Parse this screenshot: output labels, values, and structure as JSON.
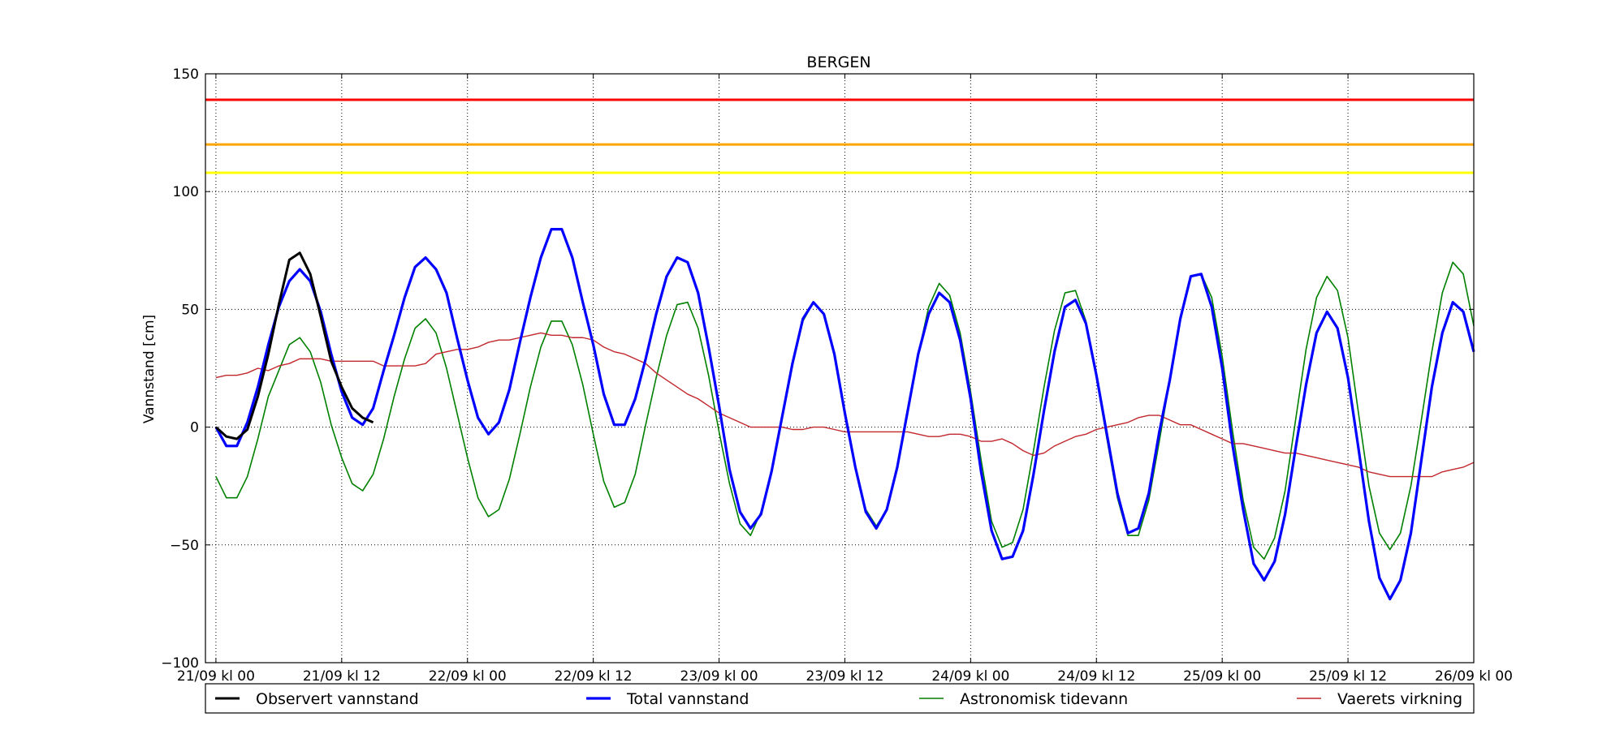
{
  "chart_data": {
    "type": "line",
    "title": "BERGEN",
    "xlabel": "",
    "ylabel": "Vannstand [cm]",
    "ylim": [
      -100,
      150
    ],
    "yticks": [
      -100,
      -50,
      0,
      50,
      100,
      150
    ],
    "ytick_labels": [
      "−100",
      "−50",
      "0",
      "50",
      "100",
      "150"
    ],
    "xlim": [
      -1,
      120
    ],
    "xticks": [
      0,
      12,
      24,
      36,
      48,
      60,
      72,
      84,
      96,
      108,
      120
    ],
    "xtick_labels": [
      "21/09 kl 00",
      "21/09 kl 12",
      "22/09 kl 00",
      "22/09 kl 12",
      "23/09 kl 00",
      "23/09 kl 12",
      "24/09 kl 00",
      "24/09 kl 12",
      "25/09 kl 00",
      "25/09 kl 12",
      "26/09 kl 00"
    ],
    "x_unit": "hours from 21/09 kl 00",
    "grid": true,
    "legend_position": "bottom",
    "thresholds": [
      {
        "value": 139,
        "color": "#ff0000"
      },
      {
        "value": 120,
        "color": "#ffa500"
      },
      {
        "value": 108,
        "color": "#ffff00"
      }
    ],
    "series": [
      {
        "name": "Observert vannstand",
        "color": "#000000",
        "x": [
          0,
          1,
          2,
          3,
          4,
          5,
          6,
          7,
          8,
          9,
          10,
          11,
          12,
          13,
          14,
          15
        ],
        "values": [
          0,
          -4,
          -5,
          -1,
          13,
          31,
          52,
          71,
          74,
          65,
          47,
          28,
          17,
          8,
          4,
          2
        ]
      },
      {
        "name": "Total vannstand",
        "color": "#0000ff",
        "x": [
          0,
          1,
          2,
          3,
          4,
          5,
          6,
          7,
          8,
          9,
          10,
          11,
          12,
          13,
          14,
          15,
          16,
          17,
          18,
          19,
          20,
          21,
          22,
          23,
          24,
          25,
          26,
          27,
          28,
          29,
          30,
          31,
          32,
          33,
          34,
          35,
          36,
          37,
          38,
          39,
          40,
          41,
          42,
          43,
          44,
          45,
          46,
          47,
          48,
          49,
          50,
          51,
          52,
          53,
          54,
          55,
          56,
          57,
          58,
          59,
          60,
          61,
          62,
          63,
          64,
          65,
          66,
          67,
          68,
          69,
          70,
          71,
          72,
          73,
          74,
          75,
          76,
          77,
          78,
          79,
          80,
          81,
          82,
          83,
          84,
          85,
          86,
          87,
          88,
          89,
          90,
          91,
          92,
          93,
          94,
          95,
          96,
          97,
          98,
          99,
          100,
          101,
          102,
          103,
          104,
          105,
          106,
          107,
          108,
          109,
          110,
          111,
          112,
          113,
          114,
          115,
          116,
          117,
          118,
          119,
          120
        ],
        "values": [
          0,
          -8,
          -8,
          2,
          17,
          35,
          51,
          62,
          67,
          62,
          49,
          31,
          15,
          4,
          1,
          8,
          24,
          39,
          55,
          68,
          72,
          67,
          57,
          38,
          20,
          4,
          -3,
          2,
          16,
          36,
          55,
          72,
          84,
          84,
          72,
          53,
          35,
          14,
          1,
          1,
          12,
          29,
          48,
          64,
          72,
          70,
          57,
          34,
          9,
          -18,
          -36,
          -43,
          -37,
          -19,
          4,
          27,
          46,
          53,
          48,
          31,
          6,
          -17,
          -36,
          -43,
          -35,
          -17,
          7,
          31,
          48,
          57,
          53,
          37,
          12,
          -19,
          -44,
          -56,
          -55,
          -44,
          -20,
          7,
          32,
          51,
          54,
          44,
          22,
          -3,
          -28,
          -45,
          -43,
          -28,
          -2,
          20,
          46,
          64,
          65,
          51,
          25,
          -8,
          -35,
          -58,
          -65,
          -57,
          -37,
          -9,
          18,
          40,
          49,
          42,
          21,
          -9,
          -40,
          -64,
          -73,
          -65,
          -45,
          -14,
          17,
          40,
          53,
          49,
          32
        ]
      },
      {
        "name": "Astronomisk tidevann",
        "color": "#008000",
        "x": [
          0,
          1,
          2,
          3,
          4,
          5,
          6,
          7,
          8,
          9,
          10,
          11,
          12,
          13,
          14,
          15,
          16,
          17,
          18,
          19,
          20,
          21,
          22,
          23,
          24,
          25,
          26,
          27,
          28,
          29,
          30,
          31,
          32,
          33,
          34,
          35,
          36,
          37,
          38,
          39,
          40,
          41,
          42,
          43,
          44,
          45,
          46,
          47,
          48,
          49,
          50,
          51,
          52,
          53,
          54,
          55,
          56,
          57,
          58,
          59,
          60,
          61,
          62,
          63,
          64,
          65,
          66,
          67,
          68,
          69,
          70,
          71,
          72,
          73,
          74,
          75,
          76,
          77,
          78,
          79,
          80,
          81,
          82,
          83,
          84,
          85,
          86,
          87,
          88,
          89,
          90,
          91,
          92,
          93,
          94,
          95,
          96,
          97,
          98,
          99,
          100,
          101,
          102,
          103,
          104,
          105,
          106,
          107,
          108,
          109,
          110,
          111,
          112,
          113,
          114,
          115,
          116,
          117,
          118,
          119,
          120
        ],
        "values": [
          -21,
          -30,
          -30,
          -21,
          -5,
          13,
          24,
          35,
          38,
          32,
          19,
          1,
          -13,
          -24,
          -27,
          -20,
          -5,
          13,
          29,
          42,
          46,
          40,
          25,
          6,
          -13,
          -30,
          -38,
          -35,
          -22,
          -3,
          17,
          34,
          45,
          45,
          35,
          18,
          -3,
          -23,
          -34,
          -32,
          -20,
          1,
          21,
          39,
          52,
          53,
          42,
          22,
          -2,
          -24,
          -41,
          -46,
          -36,
          -19,
          4,
          26,
          45,
          53,
          48,
          31,
          6,
          -17,
          -35,
          -42,
          -35,
          -17,
          7,
          31,
          51,
          61,
          56,
          40,
          15,
          -14,
          -40,
          -51,
          -49,
          -35,
          -10,
          17,
          41,
          57,
          58,
          45,
          21,
          -5,
          -30,
          -46,
          -46,
          -31,
          -6,
          20,
          45,
          64,
          65,
          55,
          30,
          -2,
          -31,
          -51,
          -56,
          -47,
          -27,
          3,
          33,
          55,
          64,
          58,
          38,
          6,
          -25,
          -45,
          -52,
          -45,
          -25,
          3,
          32,
          57,
          70,
          65,
          43
        ]
      },
      {
        "name": "Vaerets virkning",
        "color": "#c1272d",
        "x": [
          0,
          1,
          2,
          3,
          4,
          5,
          6,
          7,
          8,
          9,
          10,
          11,
          12,
          13,
          14,
          15,
          16,
          17,
          18,
          19,
          20,
          21,
          22,
          23,
          24,
          25,
          26,
          27,
          28,
          29,
          30,
          31,
          32,
          33,
          34,
          35,
          36,
          37,
          38,
          39,
          40,
          41,
          42,
          43,
          44,
          45,
          46,
          47,
          48,
          49,
          50,
          51,
          52,
          53,
          54,
          55,
          56,
          57,
          58,
          59,
          60,
          61,
          62,
          63,
          64,
          65,
          66,
          67,
          68,
          69,
          70,
          71,
          72,
          73,
          74,
          75,
          76,
          77,
          78,
          79,
          80,
          81,
          82,
          83,
          84,
          85,
          86,
          87,
          88,
          89,
          90,
          91,
          92,
          93,
          94,
          95,
          96,
          97,
          98,
          99,
          100,
          101,
          102,
          103,
          104,
          105,
          106,
          107,
          108,
          109,
          110,
          111,
          112,
          113,
          114,
          115,
          116,
          117,
          118,
          119,
          120
        ],
        "values": [
          21,
          22,
          22,
          23,
          25,
          24,
          26,
          27,
          29,
          29,
          29,
          28,
          28,
          28,
          28,
          28,
          26,
          26,
          26,
          26,
          27,
          31,
          32,
          33,
          33,
          34,
          36,
          37,
          37,
          38,
          39,
          40,
          39,
          39,
          38,
          38,
          37,
          34,
          32,
          31,
          29,
          27,
          23,
          20,
          17,
          14,
          12,
          9,
          6,
          4,
          2,
          0,
          0,
          0,
          0,
          -1,
          -1,
          0,
          0,
          -1,
          -2,
          -2,
          -2,
          -2,
          -2,
          -2,
          -2,
          -3,
          -4,
          -4,
          -3,
          -3,
          -4,
          -6,
          -6,
          -5,
          -7,
          -10,
          -12,
          -11,
          -8,
          -6,
          -4,
          -3,
          -1,
          0,
          1,
          2,
          4,
          5,
          5,
          3,
          1,
          1,
          -1,
          -3,
          -5,
          -7,
          -7,
          -8,
          -9,
          -10,
          -11,
          -11,
          -12,
          -13,
          -14,
          -15,
          -16,
          -17,
          -19,
          -20,
          -21,
          -21,
          -21,
          -21,
          -21,
          -19,
          -18,
          -17,
          -15
        ]
      }
    ]
  }
}
